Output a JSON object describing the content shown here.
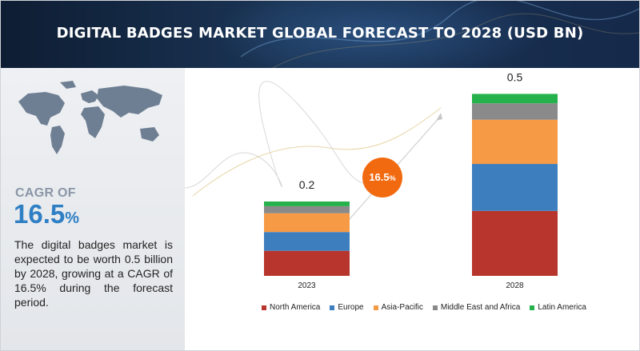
{
  "header": {
    "title": "DIGITAL BADGES MARKET GLOBAL FORECAST TO 2028 (USD BN)"
  },
  "sidebar": {
    "cagr_label": "CAGR OF",
    "cagr_value": "16.5",
    "cagr_unit": "%",
    "description": "The digital badges market is expected to be worth 0.5 billion by 2028, growing at a CAGR of 16.5% during the forecast period."
  },
  "badge": {
    "value": "16.5",
    "unit": "%"
  },
  "colors": {
    "header": "#15294a",
    "accent_blue": "#2f7fc4",
    "badge_orange": "#f26a10"
  },
  "chart_data": {
    "type": "bar",
    "stacked": true,
    "categories": [
      "2023",
      "2028"
    ],
    "totals": [
      "0.2",
      "0.5"
    ],
    "series": [
      {
        "name": "North America",
        "color": "#b7352c",
        "values": [
          0.064,
          0.166
        ]
      },
      {
        "name": "Europe",
        "color": "#3d7ebf",
        "values": [
          0.048,
          0.12
        ]
      },
      {
        "name": "Asia-Pacific",
        "color": "#f79a46",
        "values": [
          0.048,
          0.113
        ]
      },
      {
        "name": "Middle East and Africa",
        "color": "#8a8a8a",
        "values": [
          0.018,
          0.042
        ]
      },
      {
        "name": "Latin America",
        "color": "#25b14b",
        "values": [
          0.012,
          0.024
        ]
      }
    ],
    "ylim": [
      0,
      0.47
    ],
    "legend": "bottom"
  }
}
